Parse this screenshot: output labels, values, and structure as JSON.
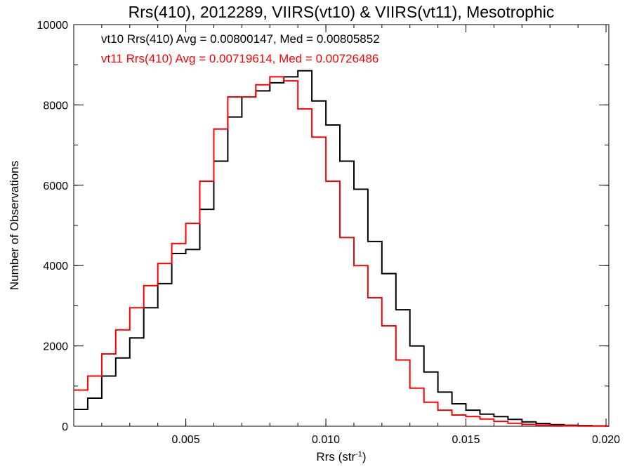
{
  "chart_data": {
    "type": "line",
    "step": true,
    "title": "Rrs(410), 2012289, VIIRS(vt10) & VIIRS(vt11), Mesotrophic",
    "xlabel": "Rrs (str",
    "xlabel_sup": "-1",
    "xlabel_end": ")",
    "ylabel": "Number of Observations",
    "xlim": [
      0.001,
      0.0201
    ],
    "ylim": [
      0,
      10000
    ],
    "xticks": [
      0.005,
      0.01,
      0.015,
      0.02
    ],
    "xtick_labels": [
      "0.005",
      "0.010",
      "0.015",
      "0.020"
    ],
    "x_minor_step": 0.001,
    "yticks": [
      0,
      2000,
      4000,
      6000,
      8000,
      10000
    ],
    "ytick_labels": [
      "0",
      "2000",
      "4000",
      "6000",
      "8000",
      "10000"
    ],
    "y_minor_step": 1000,
    "grid": false,
    "annotations": [
      {
        "text": "vt10 Rrs(410) Avg = 0.00800147, Med = 0.00805852",
        "color": "#000000"
      },
      {
        "text": "vt11 Rrs(410) Avg = 0.00719614, Med = 0.00726486",
        "color": "#ff0000"
      }
    ],
    "series": [
      {
        "color": "#000000",
        "x": [
          0.001,
          0.0015,
          0.002,
          0.0025,
          0.003,
          0.0035,
          0.004,
          0.0045,
          0.005,
          0.0055,
          0.006,
          0.0065,
          0.007,
          0.0075,
          0.008,
          0.0085,
          0.009,
          0.0095,
          0.01,
          0.0105,
          0.011,
          0.0115,
          0.012,
          0.0125,
          0.013,
          0.0135,
          0.014,
          0.0145,
          0.015,
          0.0155,
          0.016,
          0.0165,
          0.017,
          0.0175,
          0.018,
          0.0185,
          0.019,
          0.0195,
          0.02
        ],
        "y": [
          420,
          700,
          1250,
          1700,
          2200,
          2950,
          3550,
          4300,
          4400,
          5400,
          6600,
          7700,
          8200,
          8350,
          8550,
          8700,
          8850,
          8100,
          7500,
          6600,
          5900,
          4600,
          3800,
          2900,
          2000,
          1350,
          850,
          560,
          400,
          300,
          240,
          170,
          110,
          70,
          40,
          25,
          15,
          8,
          5
        ]
      },
      {
        "color": "#ff0000",
        "x": [
          0.001,
          0.0015,
          0.002,
          0.0025,
          0.003,
          0.0035,
          0.004,
          0.0045,
          0.005,
          0.0055,
          0.006,
          0.0065,
          0.007,
          0.0075,
          0.008,
          0.0085,
          0.009,
          0.0095,
          0.01,
          0.0105,
          0.011,
          0.0115,
          0.012,
          0.0125,
          0.013,
          0.0135,
          0.014,
          0.0145,
          0.015,
          0.0155,
          0.016,
          0.0165,
          0.017,
          0.0175,
          0.018,
          0.0185,
          0.019,
          0.0195,
          0.02
        ],
        "y": [
          900,
          1250,
          1800,
          2400,
          2950,
          3500,
          4050,
          4550,
          5050,
          6100,
          7400,
          8200,
          8200,
          8500,
          8700,
          8600,
          7900,
          7200,
          6100,
          4700,
          4000,
          3200,
          2500,
          1650,
          950,
          600,
          400,
          280,
          240,
          180,
          120,
          75,
          45,
          30,
          20,
          10,
          5,
          3,
          2
        ]
      }
    ]
  }
}
